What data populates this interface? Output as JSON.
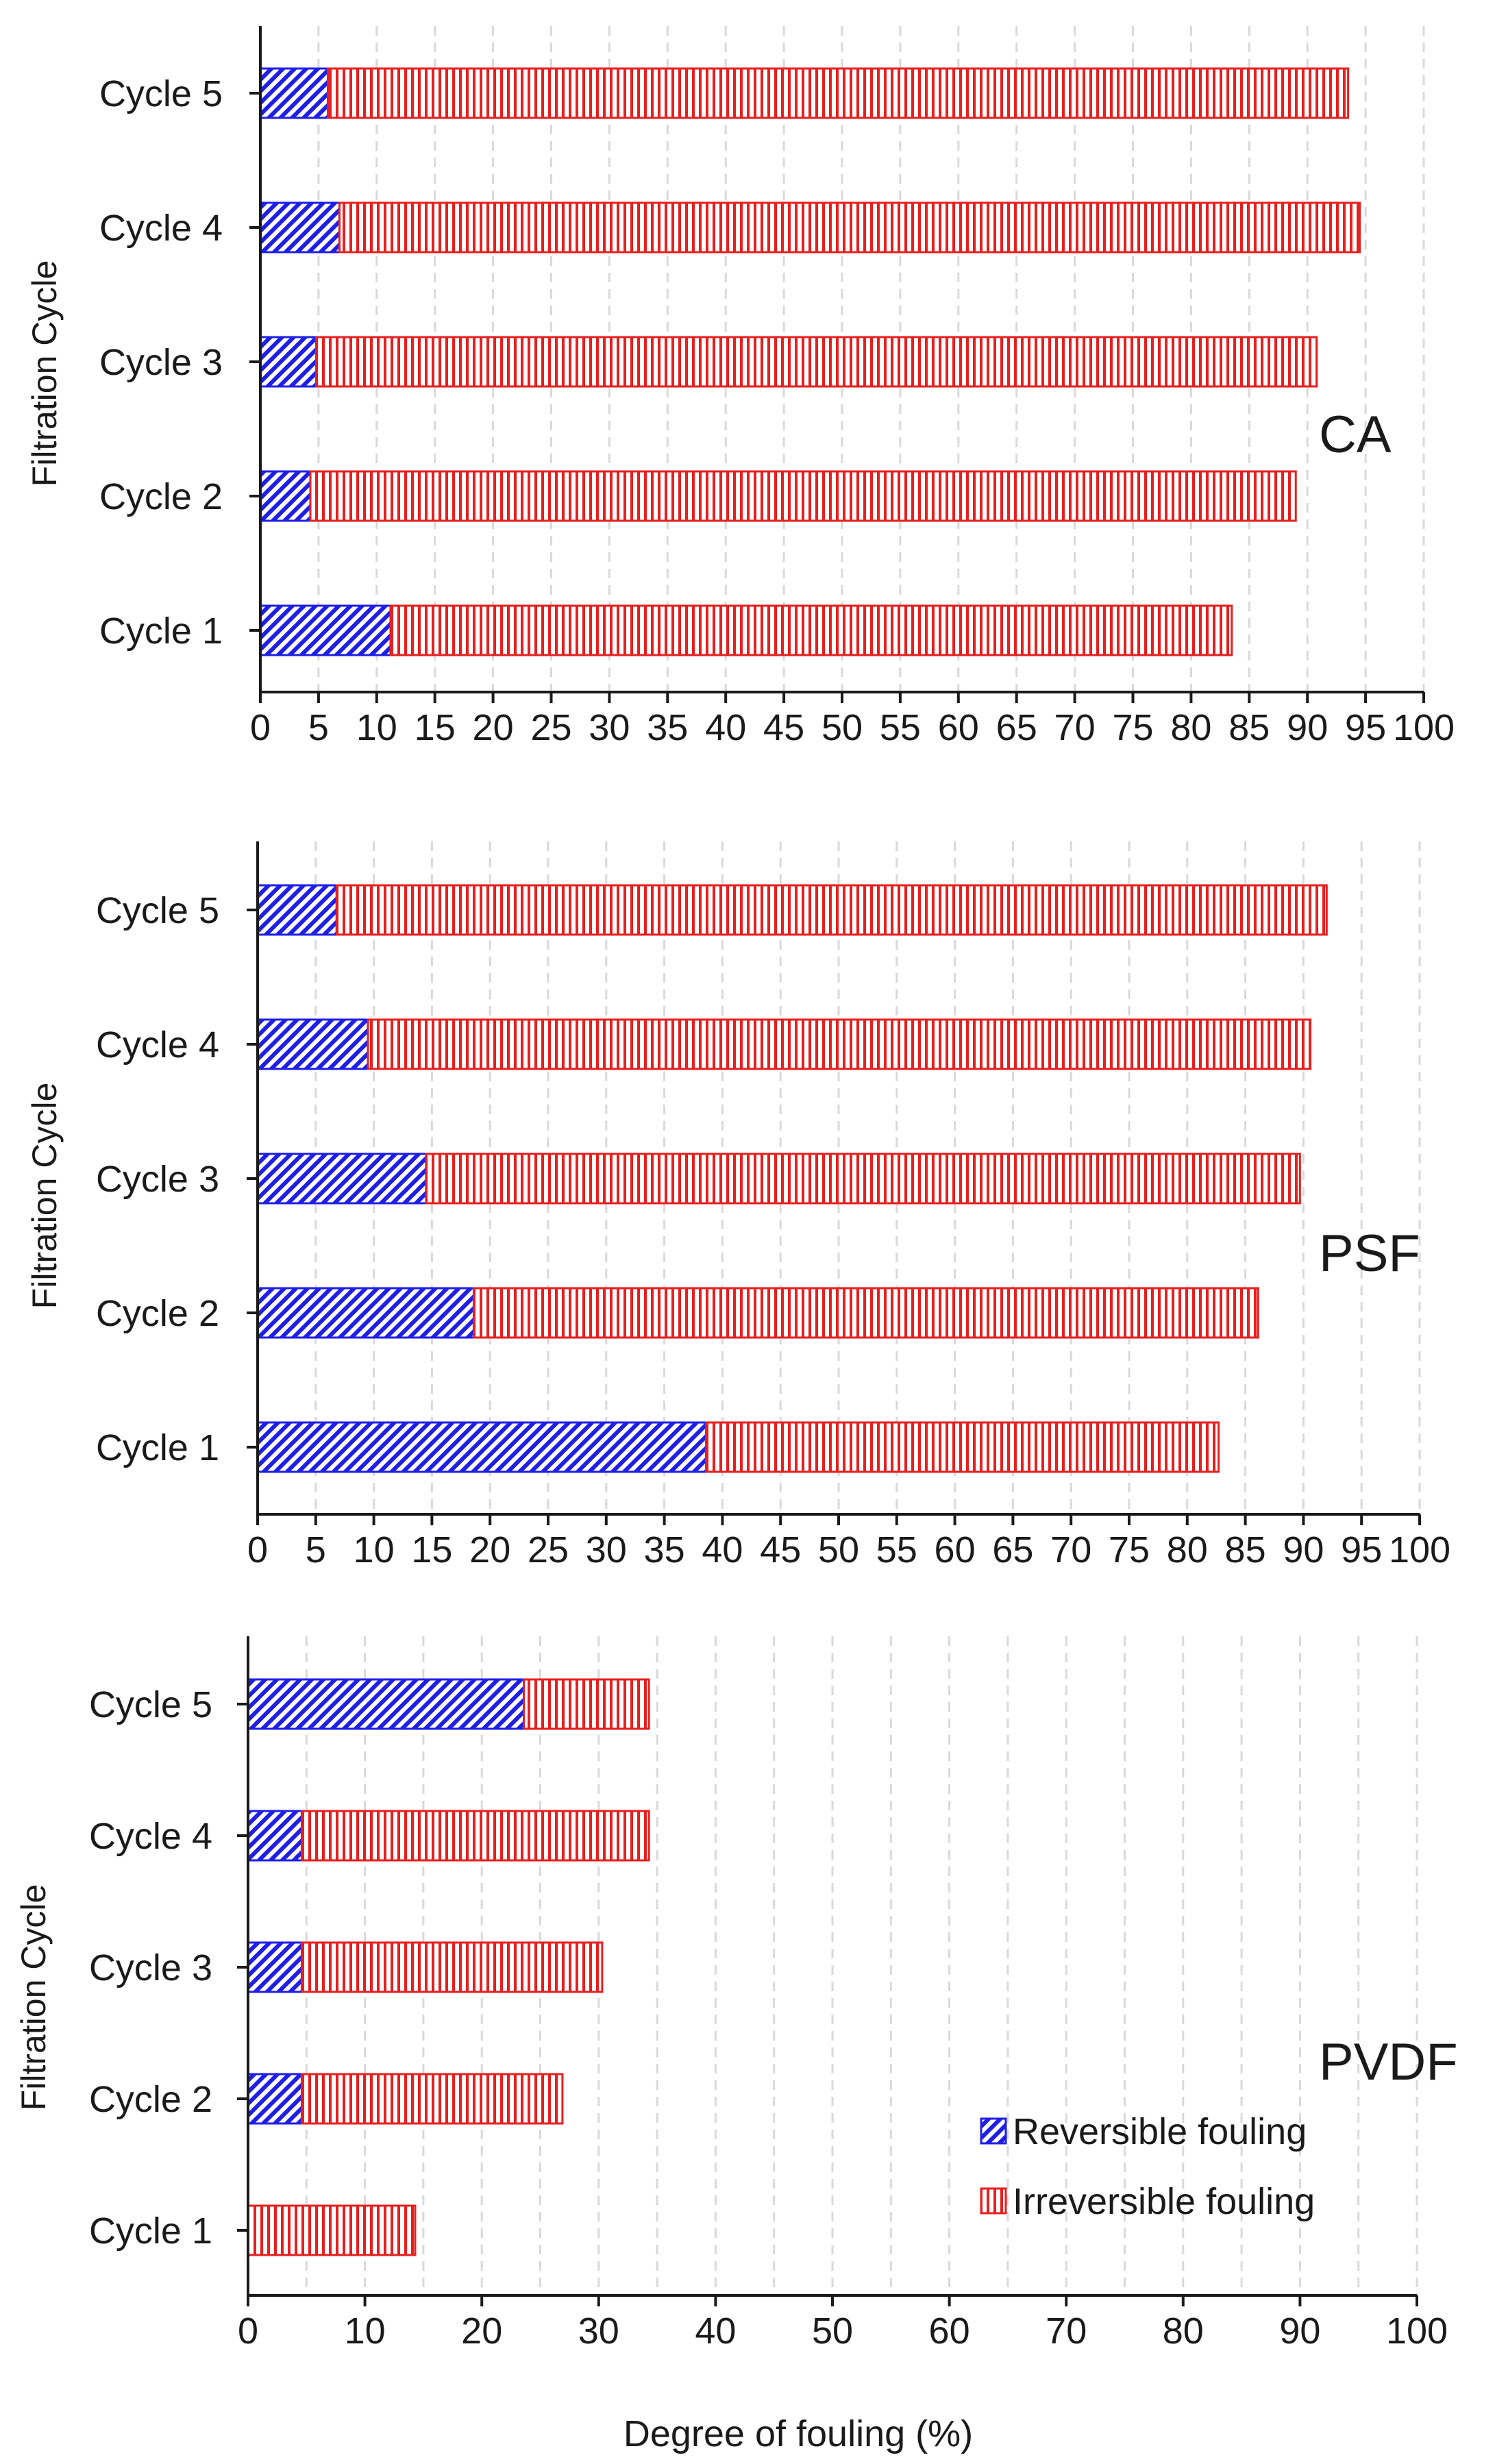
{
  "chart_data": [
    {
      "type": "bar",
      "stacked": true,
      "orientation": "horizontal",
      "panel_label": "CA",
      "ylabel": "Filtration Cycle",
      "xlabel": "",
      "xlim": [
        0,
        100
      ],
      "xticks": [
        "0",
        "5",
        "10",
        "15",
        "20",
        "25",
        "30",
        "35",
        "40",
        "45",
        "50",
        "55",
        "60",
        "65",
        "70",
        "75",
        "80",
        "85",
        "90",
        "95",
        "100"
      ],
      "categories": [
        "Cycle 1",
        "Cycle 2",
        "Cycle 3",
        "Cycle 4",
        "Cycle 5"
      ],
      "series": [
        {
          "name": "Reversible fouling",
          "values": [
            11.2,
            4.3,
            4.8,
            6.8,
            5.8
          ]
        },
        {
          "name": "Irreversible fouling",
          "values": [
            72.3,
            84.7,
            86.0,
            87.7,
            87.7
          ]
        }
      ]
    },
    {
      "type": "bar",
      "stacked": true,
      "orientation": "horizontal",
      "panel_label": "PSF",
      "ylabel": "Filtration Cycle",
      "xlabel": "",
      "xlim": [
        0,
        100
      ],
      "xticks": [
        "0",
        "5",
        "10",
        "15",
        "20",
        "25",
        "30",
        "35",
        "40",
        "45",
        "50",
        "55",
        "60",
        "65",
        "70",
        "75",
        "80",
        "85",
        "90",
        "95",
        "100"
      ],
      "categories": [
        "Cycle 1",
        "Cycle 2",
        "Cycle 3",
        "Cycle 4",
        "Cycle 5"
      ],
      "series": [
        {
          "name": "Reversible fouling",
          "values": [
            38.6,
            18.6,
            14.5,
            9.5,
            6.8
          ]
        },
        {
          "name": "Irreversible fouling",
          "values": [
            44.1,
            67.5,
            75.2,
            81.1,
            85.2
          ]
        }
      ]
    },
    {
      "type": "bar",
      "stacked": true,
      "orientation": "horizontal",
      "panel_label": "PVDF",
      "ylabel": "Filtration Cycle",
      "xlabel": "Degree of fouling (%)",
      "xlim": [
        0,
        100
      ],
      "xticks": [
        "0",
        "10",
        "20",
        "30",
        "40",
        "50",
        "60",
        "70",
        "80",
        "90",
        "100"
      ],
      "categories": [
        "Cycle 1",
        "Cycle 2",
        "Cycle 3",
        "Cycle 4",
        "Cycle 5"
      ],
      "series": [
        {
          "name": "Reversible fouling",
          "values": [
            0,
            4.6,
            4.6,
            4.6,
            23.6
          ]
        },
        {
          "name": "Irreversible fouling",
          "values": [
            14.3,
            22.3,
            25.7,
            29.7,
            10.7
          ]
        }
      ],
      "legend": {
        "position": "bottom-right",
        "entries": [
          "Reversible fouling",
          "Irreversible fouling"
        ]
      }
    }
  ],
  "colors": {
    "reversible": "#1f1fe8",
    "irreversible": "#e81f1f",
    "axis": "#1a1a1a",
    "grid": "#d9d9d9"
  }
}
